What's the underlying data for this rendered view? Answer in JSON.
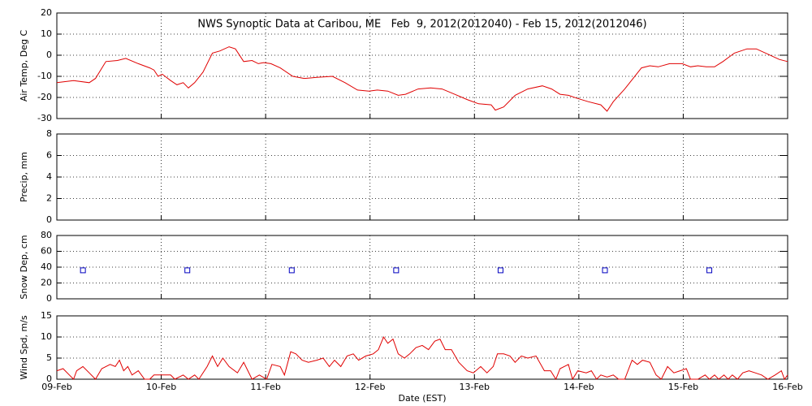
{
  "chart_data": [
    {
      "type": "line",
      "title": "NWS Synoptic Data at Caribou, ME   Feb  9, 2012(2012040) - Feb 15, 2012(2012046)",
      "y_label": "Air Temp, Deg C",
      "color": "#e00000",
      "xlim": [
        0,
        7
      ],
      "xticks": [
        0,
        1,
        2,
        3,
        4,
        5,
        6,
        7
      ],
      "ylim": [
        -30,
        20
      ],
      "yticks": [
        -30,
        -20,
        -10,
        0,
        10,
        20
      ],
      "grid": true,
      "x": [
        0,
        0.16,
        0.31,
        0.37,
        0.47,
        0.58,
        0.66,
        0.78,
        0.89,
        0.93,
        0.97,
        1.01,
        1.09,
        1.15,
        1.21,
        1.26,
        1.32,
        1.4,
        1.49,
        1.56,
        1.65,
        1.71,
        1.79,
        1.87,
        1.93,
        1.98,
        2.05,
        2.14,
        2.26,
        2.37,
        2.49,
        2.64,
        2.76,
        2.88,
        2.99,
        3.07,
        3.17,
        3.27,
        3.34,
        3.46,
        3.58,
        3.69,
        3.81,
        3.93,
        4.04,
        4.16,
        4.2,
        4.28,
        4.39,
        4.51,
        4.65,
        4.74,
        4.82,
        4.9,
        4.99,
        5.09,
        5.21,
        5.27,
        5.33,
        5.44,
        5.52,
        5.6,
        5.68,
        5.76,
        5.87,
        5.99,
        6.07,
        6.14,
        6.22,
        6.3,
        6.38,
        6.49,
        6.61,
        6.7,
        6.81,
        6.92,
        7.0
      ],
      "values": [
        -13,
        -12,
        -13,
        -11,
        -3,
        -2.5,
        -1.5,
        -4,
        -6,
        -7,
        -10,
        -9,
        -12,
        -14,
        -13,
        -15.5,
        -13,
        -8,
        1,
        2,
        4,
        3,
        -3,
        -2.5,
        -4,
        -3.5,
        -4,
        -6,
        -10,
        -11,
        -10.5,
        -10,
        -13,
        -16.5,
        -17,
        -16.5,
        -17,
        -19,
        -18.5,
        -16,
        -15.5,
        -16,
        -18.5,
        -21,
        -23,
        -23.5,
        -26,
        -24.5,
        -19,
        -16,
        -14.5,
        -16,
        -18.5,
        -19,
        -20.5,
        -22,
        -23.5,
        -26.5,
        -22,
        -16,
        -11,
        -6,
        -5,
        -5.5,
        -4,
        -4,
        -5.5,
        -5,
        -5.5,
        -5.5,
        -3,
        1,
        3,
        3,
        0.5,
        -2,
        -3
      ]
    },
    {
      "type": "line",
      "y_label": "Precip, mm",
      "xlim": [
        0,
        7
      ],
      "xticks": [
        0,
        1,
        2,
        3,
        4,
        5,
        6,
        7
      ],
      "ylim": [
        0,
        8
      ],
      "yticks": [
        0,
        2,
        4,
        6,
        8
      ],
      "grid": true
    },
    {
      "type": "scatter",
      "y_label": "Snow Dep, cm",
      "color": "#0000c0",
      "xlim": [
        0,
        7
      ],
      "xticks": [
        0,
        1,
        2,
        3,
        4,
        5,
        6,
        7
      ],
      "ylim": [
        0,
        80
      ],
      "yticks": [
        0,
        20,
        40,
        60,
        80
      ],
      "grid": true,
      "x": [
        0.25,
        1.25,
        2.25,
        3.25,
        4.25,
        5.25,
        6.25
      ],
      "values": [
        36,
        36,
        36,
        36,
        36,
        36,
        36
      ]
    },
    {
      "type": "line",
      "y_label": "Wind Spd, m/s",
      "x_label": "Date (EST)",
      "color": "#e00000",
      "xlim": [
        0,
        7
      ],
      "xticks": [
        {
          "value": 0,
          "label": "09-Feb"
        },
        {
          "value": 1,
          "label": "10-Feb"
        },
        {
          "value": 2,
          "label": "11-Feb"
        },
        {
          "value": 3,
          "label": "12-Feb"
        },
        {
          "value": 4,
          "label": "13-Feb"
        },
        {
          "value": 5,
          "label": "14-Feb"
        },
        {
          "value": 6,
          "label": "15-Feb"
        },
        {
          "value": 7,
          "label": "16-Feb"
        }
      ],
      "ylim": [
        0,
        15
      ],
      "yticks": [
        0,
        5,
        10,
        15
      ],
      "grid": true,
      "x": [
        0,
        0.06,
        0.12,
        0.16,
        0.19,
        0.25,
        0.31,
        0.37,
        0.43,
        0.51,
        0.56,
        0.6,
        0.64,
        0.68,
        0.72,
        0.78,
        0.84,
        0.89,
        0.93,
        1.09,
        1.13,
        1.21,
        1.26,
        1.32,
        1.36,
        1.44,
        1.49,
        1.54,
        1.59,
        1.65,
        1.73,
        1.79,
        1.87,
        1.94,
        2.01,
        2.06,
        2.14,
        2.18,
        2.24,
        2.29,
        2.35,
        2.41,
        2.49,
        2.55,
        2.61,
        2.66,
        2.72,
        2.78,
        2.84,
        2.89,
        2.96,
        3.03,
        3.08,
        3.13,
        3.17,
        3.22,
        3.27,
        3.33,
        3.38,
        3.44,
        3.5,
        3.56,
        3.62,
        3.67,
        3.72,
        3.78,
        3.85,
        3.93,
        3.99,
        4.06,
        4.12,
        4.18,
        4.22,
        4.28,
        4.34,
        4.39,
        4.45,
        4.51,
        4.59,
        4.67,
        4.73,
        4.78,
        4.82,
        4.9,
        4.94,
        4.99,
        5.07,
        5.12,
        5.17,
        5.21,
        5.27,
        5.33,
        5.38,
        5.44,
        5.51,
        5.56,
        5.61,
        5.68,
        5.74,
        5.79,
        5.85,
        5.91,
        5.97,
        6.03,
        6.07,
        6.14,
        6.21,
        6.25,
        6.3,
        6.34,
        6.39,
        6.43,
        6.47,
        6.52,
        6.57,
        6.63,
        6.69,
        6.75,
        6.81,
        6.88,
        6.94,
        6.97,
        7.0
      ],
      "values": [
        2,
        2.5,
        1,
        0,
        2,
        3,
        1.5,
        0,
        2.5,
        3.5,
        3,
        4.5,
        2,
        3,
        1,
        2,
        0,
        0,
        1,
        1,
        0,
        1,
        0,
        1,
        0,
        3,
        5.5,
        3,
        5,
        3,
        1.5,
        4,
        0,
        1,
        0,
        3.5,
        3,
        1,
        6.5,
        6,
        4.5,
        4,
        4.5,
        5,
        3,
        4.5,
        3,
        5.5,
        6,
        4.5,
        5.5,
        6,
        7,
        10,
        8.5,
        9.5,
        6,
        5,
        6,
        7.5,
        8,
        7,
        9,
        9.5,
        7,
        7,
        4,
        2,
        1.5,
        3,
        1.5,
        3,
        6,
        6,
        5.5,
        4,
        5.5,
        5,
        5.5,
        2,
        2,
        0,
        2.5,
        3.5,
        0,
        2,
        1.5,
        2,
        0,
        1,
        0.5,
        1,
        0,
        0,
        4.5,
        3.5,
        4.5,
        4,
        1,
        0,
        3,
        1.5,
        2,
        2.5,
        0,
        0,
        1,
        0,
        1,
        0,
        1,
        0,
        1,
        0,
        1.5,
        2,
        1.5,
        1,
        0,
        1,
        2,
        0,
        1
      ]
    }
  ]
}
